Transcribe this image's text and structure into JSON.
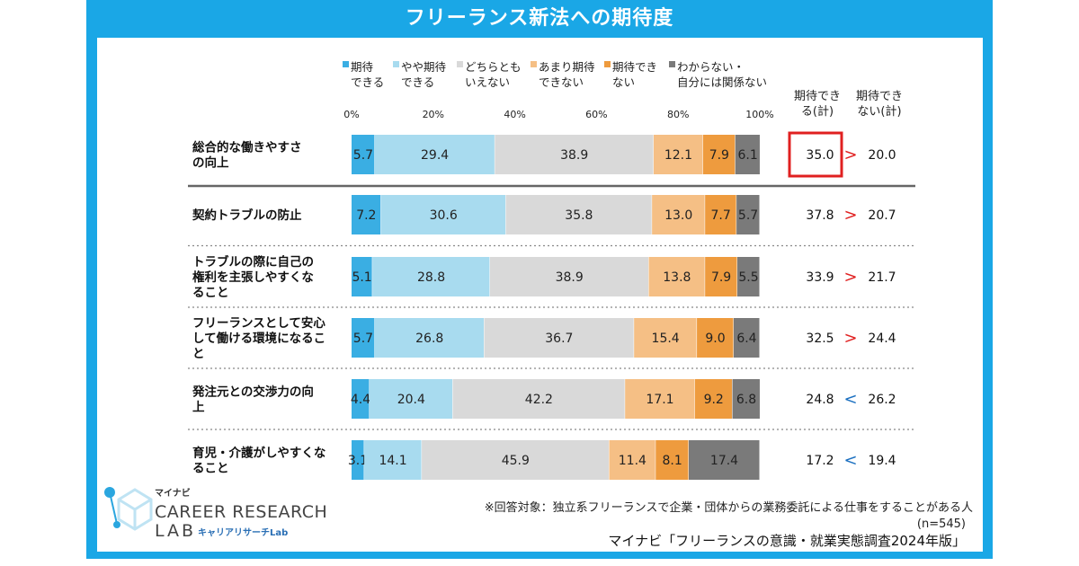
{
  "title": "フリーランス新法への期待度",
  "legend": [
    {
      "lines": [
        "期待",
        "できる"
      ],
      "color": "#3aaee3"
    },
    {
      "lines": [
        "やや期待",
        "できる"
      ],
      "color": "#a8dbef"
    },
    {
      "lines": [
        "どちらとも",
        "いえない"
      ],
      "color": "#d9d9d9"
    },
    {
      "lines": [
        "あまり期待",
        "できない"
      ],
      "color": "#f5bf85"
    },
    {
      "lines": [
        "期待でき",
        "ない"
      ],
      "color": "#ee9b3e"
    },
    {
      "lines": [
        "わからない・",
        "自分には関係ない"
      ],
      "color": "#7a7a7a"
    }
  ],
  "sum_headers": [
    [
      "期待でき",
      "る(計)"
    ],
    [
      "期待でき",
      "ない(計)"
    ]
  ],
  "highlight_color": "#e02020",
  "chart_data": {
    "type": "bar",
    "orientation": "horizontal-stacked-100",
    "x_ticks": [
      "0%",
      "20%",
      "40%",
      "60%",
      "80%",
      "100%"
    ],
    "xlim": [
      0,
      100
    ],
    "series_names": [
      "期待できる",
      "やや期待できる",
      "どちらともいえない",
      "あまり期待できない",
      "期待できない",
      "わからない・自分には関係ない"
    ],
    "rows": [
      {
        "label": [
          "総合的な働きやすさ",
          "の向上"
        ],
        "values": [
          5.7,
          29.4,
          38.9,
          12.1,
          7.9,
          6.1
        ],
        "sum_expect": "35.0",
        "cmp": ">",
        "sum_not": "20.0",
        "highlight": true
      },
      {
        "label": [
          "契約トラブルの防止"
        ],
        "values": [
          7.2,
          30.6,
          35.8,
          13.0,
          7.7,
          5.7
        ],
        "sum_expect": "37.8",
        "cmp": ">",
        "sum_not": "20.7"
      },
      {
        "label": [
          "トラブルの際に自己の",
          "権利を主張しやすくな",
          "ること"
        ],
        "values": [
          5.1,
          28.8,
          38.9,
          13.8,
          7.9,
          5.5
        ],
        "sum_expect": "33.9",
        "cmp": ">",
        "sum_not": "21.7"
      },
      {
        "label": [
          "フリーランスとして安心",
          "して働ける環境になるこ",
          "と"
        ],
        "values": [
          5.7,
          26.8,
          36.7,
          15.4,
          9.0,
          6.4
        ],
        "sum_expect": "32.5",
        "cmp": ">",
        "sum_not": "24.4"
      },
      {
        "label": [
          "発注元との交渉力の向",
          "上"
        ],
        "values": [
          4.4,
          20.4,
          42.2,
          17.1,
          9.2,
          6.8
        ],
        "sum_expect": "24.8",
        "cmp": "<",
        "sum_not": "26.2"
      },
      {
        "label": [
          "育児・介護がしやすくな",
          "ること"
        ],
        "values": [
          3.1,
          14.1,
          45.9,
          11.4,
          8.1,
          17.4
        ],
        "sum_expect": "17.2",
        "cmp": "<",
        "sum_not": "19.4"
      }
    ]
  },
  "footnote": "※回答対象：独立系フリーランスで企業・団体からの業務委託による仕事をすることがある人",
  "sample": "(n=545)",
  "source": "マイナビ「フリーランスの意識・就業実態調査2024年版」",
  "logo": {
    "top": "マイナビ",
    "main1": "CAREER RESEARCH",
    "main2": "LAB",
    "sub": "キャリアリサーチLab"
  }
}
